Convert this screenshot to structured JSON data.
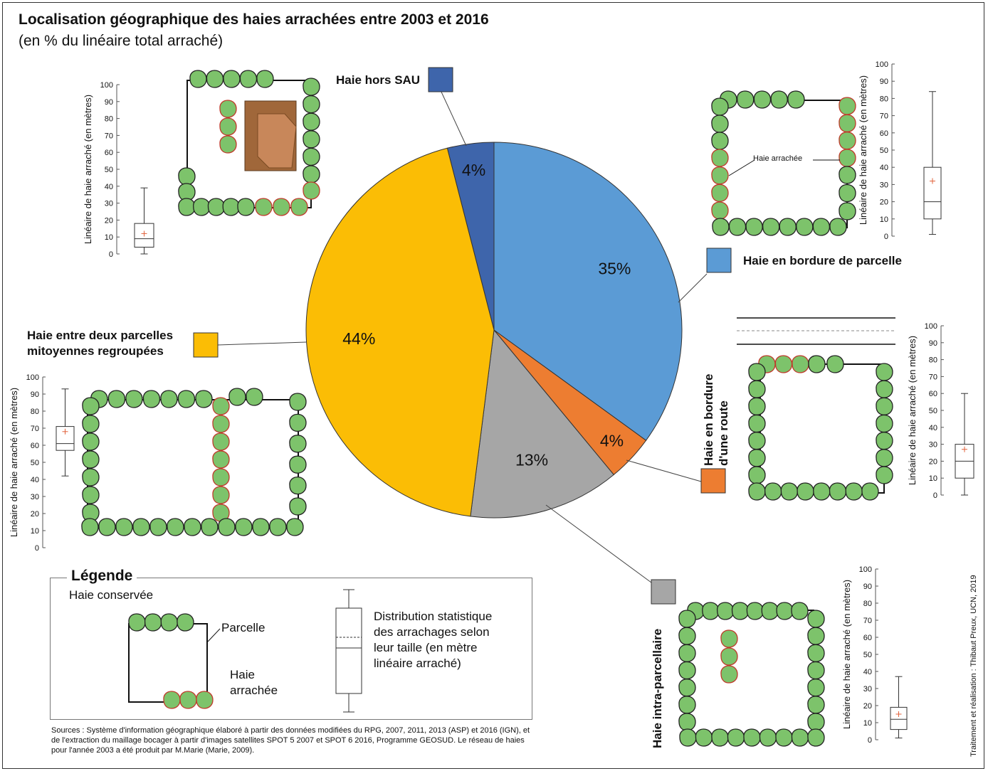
{
  "title": "Localisation géographique des haies arrachées entre 2003 et 2016",
  "subtitle": "(en % du linéaire total arraché)",
  "chart_data": [
    {
      "type": "pie",
      "slices": [
        {
          "label": "Haie hors SAU",
          "value": 4,
          "value_label": "4%",
          "color": "#3e65ab"
        },
        {
          "label": "Haie en bordure de parcelle",
          "value": 35,
          "value_label": "35%",
          "color": "#5b9bd5"
        },
        {
          "label": "Haie en bordure d'une route",
          "value": 4,
          "value_label": "4%",
          "color": "#ed7d31"
        },
        {
          "label": "Haie intra-parcellaire",
          "value": 13,
          "value_label": "13%",
          "color": "#a6a6a6"
        },
        {
          "label": "Haie entre deux parcelles mitoyennes regroupées",
          "value": 44,
          "value_label": "44%",
          "color": "#fbbd05"
        }
      ]
    },
    {
      "type": "boxplot",
      "category": "Haie hors SAU",
      "ylabel": "Linéaire de haie arraché (en mètres)",
      "ylim": [
        0,
        100
      ],
      "ticks": [
        "0",
        "10",
        "20",
        "30",
        "40",
        "50",
        "60",
        "70",
        "80",
        "90",
        "100"
      ],
      "min": 0,
      "q1": 4,
      "median": 9,
      "mean": 12,
      "q3": 18,
      "max": 39
    },
    {
      "type": "boxplot",
      "category": "Haie en bordure de parcelle",
      "ylabel": "Linéaire de haie arraché (en mètres)",
      "ylim": [
        0,
        100
      ],
      "ticks": [
        "0",
        "10",
        "20",
        "30",
        "40",
        "50",
        "60",
        "70",
        "80",
        "90",
        "100"
      ],
      "min": 1,
      "q1": 10,
      "median": 20,
      "mean": 32,
      "q3": 40,
      "max": 84
    },
    {
      "type": "boxplot",
      "category": "Haie entre deux parcelles mitoyennes regroupées",
      "ylabel": "Linéaire de haie arraché (en mètres)",
      "ylim": [
        0,
        100
      ],
      "ticks": [
        "0",
        "10",
        "20",
        "30",
        "40",
        "50",
        "60",
        "70",
        "80",
        "90",
        "100"
      ],
      "min": 42,
      "q1": 57,
      "median": 61,
      "mean": 68,
      "q3": 71,
      "max": 93
    },
    {
      "type": "boxplot",
      "category": "Haie en bordure d'une route",
      "ylabel": "Linéaire de haie arraché (en mètres)",
      "ylim": [
        0,
        100
      ],
      "ticks": [
        "0",
        "10",
        "20",
        "30",
        "40",
        "50",
        "60",
        "70",
        "80",
        "90",
        "100"
      ],
      "min": 0,
      "q1": 10,
      "median": 20,
      "mean": 27,
      "q3": 30,
      "max": 60
    },
    {
      "type": "boxplot",
      "category": "Haie intra-parcellaire",
      "ylabel": "Linéaire de haie arraché (en mètres)",
      "ylim": [
        0,
        100
      ],
      "ticks": [
        "0",
        "10",
        "20",
        "30",
        "40",
        "50",
        "60",
        "70",
        "80",
        "90",
        "100"
      ],
      "min": 1,
      "q1": 6,
      "median": 12,
      "mean": 15,
      "q3": 19,
      "max": 37
    }
  ],
  "labels": {
    "hors_sau": "Haie hors SAU",
    "bordure_parcelle": "Haie en bordure de parcelle",
    "mitoyennes_1": "Haie entre deux parcelles",
    "mitoyennes_2": "mitoyennes regroupées",
    "route_1": "Haie en bordure",
    "route_2": "d'une route",
    "intra": "Haie intra-parcellaire",
    "haie_arrachee_callout": "Haie arrachée"
  },
  "legend": {
    "title": "Légende",
    "conservee": "Haie conservée",
    "parcelle": "Parcelle",
    "arrachee_1": "Haie",
    "arrachee_2": "arrachée",
    "boxplot_1": "Distribution statistique",
    "boxplot_2": "des arrachages selon",
    "boxplot_3": "leur taille (en mètre",
    "boxplot_4": "linéaire arraché)"
  },
  "sources": "Sources : Système d'information géographique élaboré à partir des données modifiées du RPG, 2007, 2011, 2013 (ASP) et 2016 (IGN), et de l'extraction du maillage bocager à partir d'images satellites SPOT 5 2007 et SPOT 6 2016, Programme GEOSUD. Le réseau de haies pour l'année 2003 a été produit par M.Marie (Marie, 2009).",
  "credit": "Traitement et réalisation : Thibaut Preux, UCN, 2019",
  "colors": {
    "hedge_fill": "#7dc36b",
    "hedge_kept_stroke": "#222222",
    "hedge_removed_stroke": "#c0392b",
    "mean_marker": "#e0603a"
  }
}
